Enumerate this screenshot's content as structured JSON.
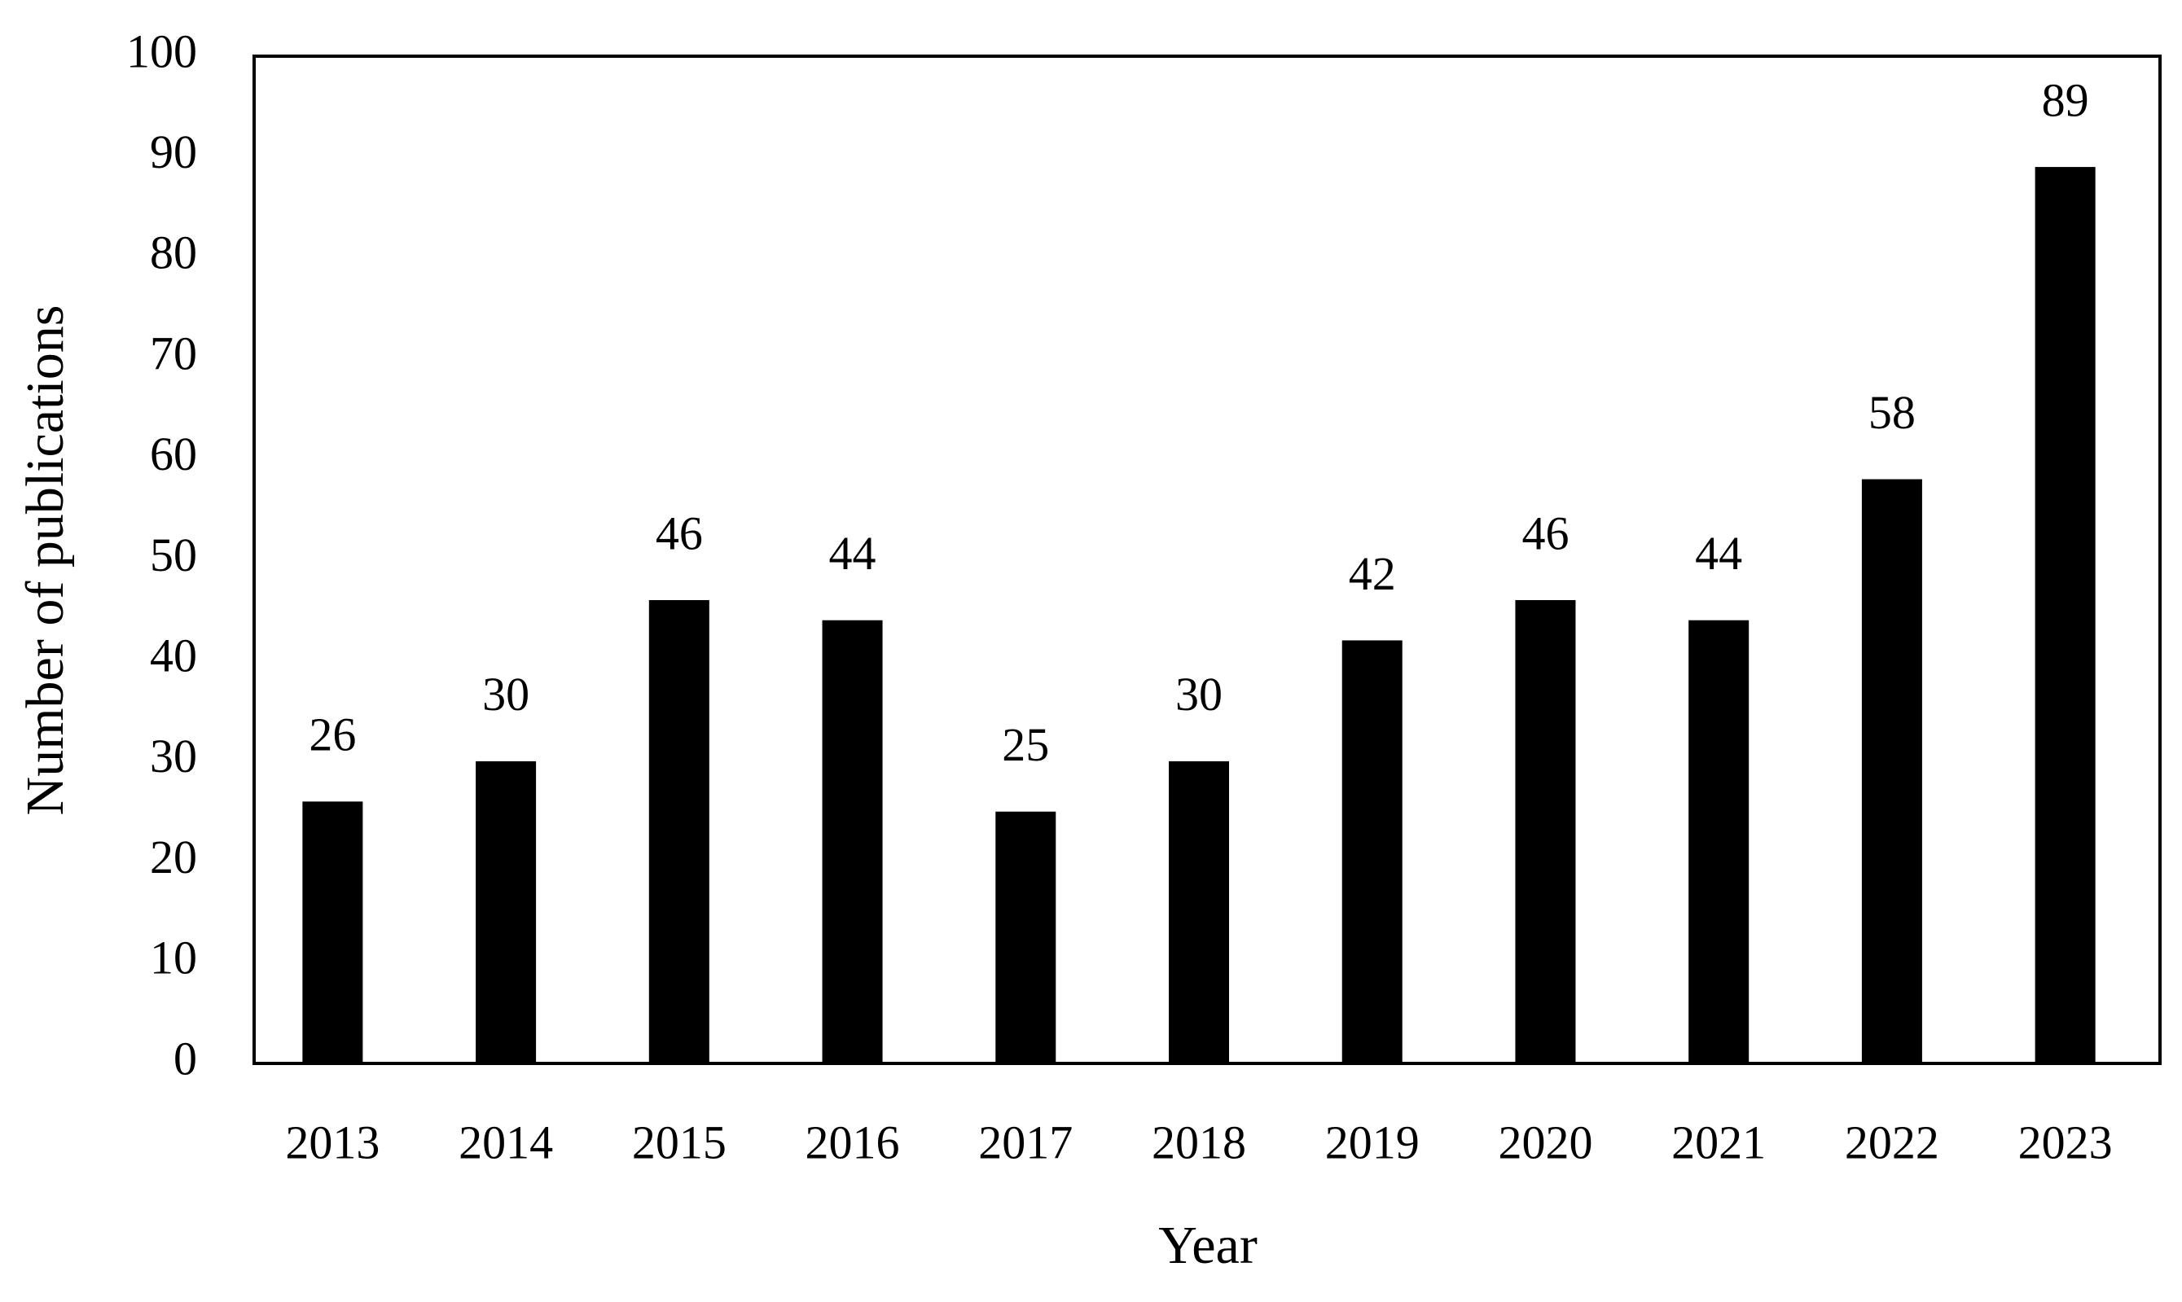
{
  "chart_data": {
    "type": "bar",
    "x_label": "Year",
    "y_label": "Number of publications",
    "categories": [
      "2013",
      "2014",
      "2015",
      "2016",
      "2017",
      "2018",
      "2019",
      "2020",
      "2021",
      "2022",
      "2023"
    ],
    "values": [
      26,
      30,
      46,
      44,
      25,
      30,
      42,
      46,
      44,
      58,
      89
    ],
    "color": "#000000",
    "ylim": [
      0,
      100
    ],
    "yticks": [
      0,
      10,
      20,
      30,
      40,
      50,
      60,
      70,
      80,
      90,
      100
    ],
    "grid": false,
    "data_labels": true
  }
}
